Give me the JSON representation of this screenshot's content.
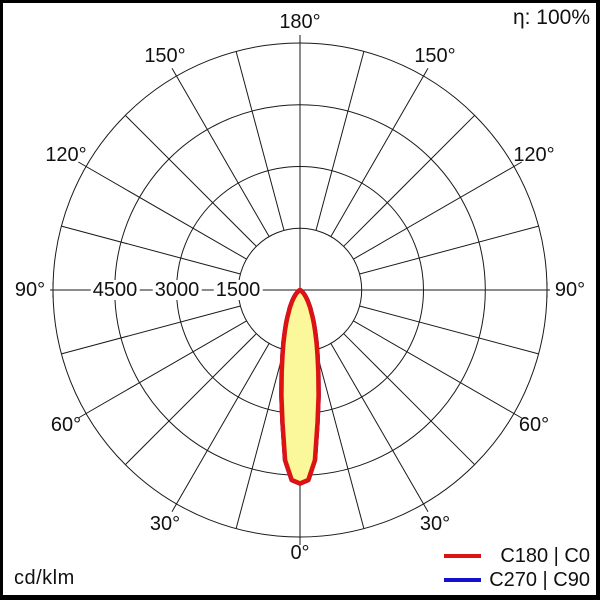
{
  "header": {
    "efficiency": "η: 100%"
  },
  "footer": {
    "unit": "cd/klm"
  },
  "legend": [
    {
      "label": "C180 | C0",
      "color": "#dd1212"
    },
    {
      "label": "C270 | C90",
      "color": "#1212cc"
    }
  ],
  "chart_data": {
    "type": "polar-photometric",
    "title": "Luminous intensity distribution curve",
    "unit": "cd/klm",
    "efficiency_percent": 100,
    "grid": {
      "angle_step_deg": 15,
      "labeled_angle_step_deg": 30
    },
    "radial_axis": {
      "tick_values": [
        4500,
        3000,
        1500
      ],
      "ring_values": [
        1500,
        3000,
        4500,
        6000
      ],
      "max": 6000
    },
    "angle_labels": [
      {
        "text": "180°",
        "gamma": 180,
        "side": 0
      },
      {
        "text": "150°",
        "gamma": 150,
        "side": -1
      },
      {
        "text": "150°",
        "gamma": 150,
        "side": 1
      },
      {
        "text": "120°",
        "gamma": 120,
        "side": -1
      },
      {
        "text": "120°",
        "gamma": 120,
        "side": 1
      },
      {
        "text": "90°",
        "gamma": 90,
        "side": -1
      },
      {
        "text": "90°",
        "gamma": 90,
        "side": 1
      },
      {
        "text": "60°",
        "gamma": 60,
        "side": -1
      },
      {
        "text": "60°",
        "gamma": 60,
        "side": 1
      },
      {
        "text": "30°",
        "gamma": 30,
        "side": -1
      },
      {
        "text": "30°",
        "gamma": 30,
        "side": 1
      },
      {
        "text": "0°",
        "gamma": 0,
        "side": 0
      }
    ],
    "series": [
      {
        "name": "C270 | C90",
        "color": "#1212cc",
        "fill": "#fbf89b",
        "gamma_deg": [
          0,
          2.5,
          5,
          7.5,
          10,
          12.5,
          15,
          17.5,
          20,
          22.5,
          25,
          30,
          35,
          40,
          45,
          50,
          55,
          60,
          65
        ],
        "intensity_cd_per_klm": [
          4700,
          4620,
          4150,
          3250,
          2600,
          2050,
          1640,
          1330,
          1080,
          880,
          720,
          490,
          330,
          220,
          140,
          80,
          40,
          12,
          0
        ]
      },
      {
        "name": "C180 | C0",
        "color": "#dd1212",
        "fill": "#fbf89b",
        "gamma_deg": [
          0,
          2.5,
          5,
          7.5,
          10,
          12.5,
          15,
          17.5,
          20,
          22.5,
          25,
          30,
          35,
          40,
          45,
          50,
          55,
          60,
          65
        ],
        "intensity_cd_per_klm": [
          4700,
          4620,
          4150,
          3250,
          2600,
          2050,
          1640,
          1330,
          1080,
          880,
          720,
          490,
          330,
          220,
          140,
          80,
          40,
          12,
          0
        ]
      }
    ]
  }
}
